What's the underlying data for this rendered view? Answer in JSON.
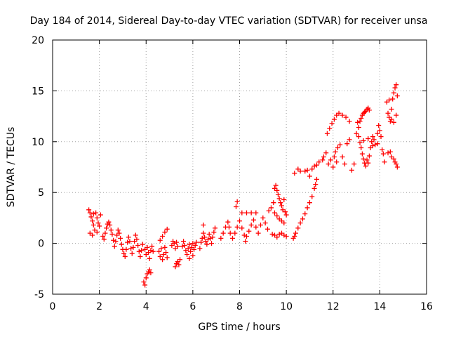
{
  "chart_data": {
    "type": "scatter",
    "title": "Day 184 of 2014, Sidereal Day-to-day VTEC variation (SDTVAR) for receiver unsa",
    "xlabel": "GPS time / hours",
    "ylabel": "SDTVAR / TECUs",
    "xlim": [
      0,
      16
    ],
    "ylim": [
      -5,
      20
    ],
    "xticks": [
      "0",
      "2",
      "4",
      "6",
      "8",
      "10",
      "12",
      "14",
      "16"
    ],
    "yticks": [
      "-5",
      "0",
      "5",
      "10",
      "15",
      "20"
    ],
    "grid": true,
    "marker": "+",
    "series_color": "#ff0000",
    "series": [
      {
        "name": "SDTVAR",
        "points": [
          [
            1.55,
            3.3
          ],
          [
            1.6,
            3.0
          ],
          [
            1.65,
            2.6
          ],
          [
            1.7,
            2.2
          ],
          [
            1.75,
            1.8
          ],
          [
            1.8,
            1.3
          ],
          [
            1.6,
            1.0
          ],
          [
            1.7,
            0.8
          ],
          [
            1.85,
            3.0
          ],
          [
            1.9,
            2.5
          ],
          [
            1.95,
            2.0
          ],
          [
            2.0,
            1.7
          ],
          [
            2.05,
            2.8
          ],
          [
            1.75,
            2.9
          ],
          [
            1.9,
            1.1
          ],
          [
            2.15,
            0.7
          ],
          [
            2.2,
            0.4
          ],
          [
            2.25,
            1.0
          ],
          [
            2.3,
            1.5
          ],
          [
            2.35,
            1.9
          ],
          [
            2.4,
            2.1
          ],
          [
            2.45,
            1.8
          ],
          [
            2.5,
            1.3
          ],
          [
            2.55,
            0.9
          ],
          [
            2.6,
            0.3
          ],
          [
            2.65,
            -0.3
          ],
          [
            2.7,
            0.2
          ],
          [
            2.75,
            0.8
          ],
          [
            2.8,
            1.3
          ],
          [
            2.85,
            1.0
          ],
          [
            2.9,
            0.5
          ],
          [
            2.95,
            -0.1
          ],
          [
            3.0,
            -0.6
          ],
          [
            3.05,
            -1.0
          ],
          [
            3.1,
            -1.3
          ],
          [
            3.15,
            -0.6
          ],
          [
            3.2,
            0.1
          ],
          [
            3.25,
            0.6
          ],
          [
            3.3,
            0.2
          ],
          [
            3.35,
            -0.5
          ],
          [
            3.4,
            -1.0
          ],
          [
            3.45,
            -0.4
          ],
          [
            3.5,
            0.2
          ],
          [
            3.55,
            0.8
          ],
          [
            3.6,
            0.4
          ],
          [
            3.65,
            -0.2
          ],
          [
            3.7,
            -0.8
          ],
          [
            3.75,
            -1.3
          ],
          [
            3.8,
            -0.7
          ],
          [
            3.85,
            -0.1
          ],
          [
            3.9,
            -3.8
          ],
          [
            3.95,
            -4.1
          ],
          [
            4.0,
            -3.4
          ],
          [
            4.05,
            -3.0
          ],
          [
            4.1,
            -2.8
          ],
          [
            4.15,
            -2.6
          ],
          [
            4.2,
            -2.9
          ],
          [
            3.95,
            -0.6
          ],
          [
            4.0,
            -1.1
          ],
          [
            4.05,
            -0.4
          ],
          [
            4.1,
            -0.9
          ],
          [
            4.15,
            -1.5
          ],
          [
            4.2,
            -0.7
          ],
          [
            4.25,
            -0.3
          ],
          [
            4.3,
            -0.8
          ],
          [
            4.55,
            -0.8
          ],
          [
            4.6,
            -1.3
          ],
          [
            4.65,
            -0.5
          ],
          [
            4.7,
            -1.6
          ],
          [
            4.75,
            -1.1
          ],
          [
            4.8,
            -0.4
          ],
          [
            4.85,
            -0.9
          ],
          [
            4.9,
            -1.4
          ],
          [
            4.6,
            0.3
          ],
          [
            4.7,
            0.7
          ],
          [
            4.8,
            1.1
          ],
          [
            4.9,
            1.4
          ],
          [
            5.1,
            -0.2
          ],
          [
            5.15,
            0.2
          ],
          [
            5.2,
            0.0
          ],
          [
            5.25,
            -0.5
          ],
          [
            5.3,
            0.1
          ],
          [
            5.35,
            -0.3
          ],
          [
            5.25,
            -2.3
          ],
          [
            5.3,
            -2.0
          ],
          [
            5.35,
            -1.8
          ],
          [
            5.4,
            -2.1
          ],
          [
            5.45,
            -1.6
          ],
          [
            5.55,
            -0.3
          ],
          [
            5.6,
            0.2
          ],
          [
            5.65,
            -0.2
          ],
          [
            5.7,
            -0.7
          ],
          [
            5.75,
            -1.1
          ],
          [
            5.8,
            -0.5
          ],
          [
            5.85,
            -0.1
          ],
          [
            5.9,
            -0.8
          ],
          [
            5.95,
            -0.4
          ],
          [
            6.0,
            0.0
          ],
          [
            6.05,
            -0.6
          ],
          [
            6.1,
            -0.2
          ],
          [
            6.15,
            0.1
          ],
          [
            5.85,
            -1.5
          ],
          [
            6.0,
            -1.2
          ],
          [
            6.3,
            -0.5
          ],
          [
            6.35,
            0.1
          ],
          [
            6.4,
            0.5
          ],
          [
            6.45,
            1.0
          ],
          [
            6.5,
            0.6
          ],
          [
            6.55,
            0.2
          ],
          [
            6.6,
            -0.1
          ],
          [
            6.65,
            0.4
          ],
          [
            6.7,
            0.9
          ],
          [
            6.75,
            0.5
          ],
          [
            6.8,
            0.0
          ],
          [
            6.85,
            0.6
          ],
          [
            6.9,
            1.1
          ],
          [
            6.95,
            1.5
          ],
          [
            6.45,
            1.8
          ],
          [
            7.2,
            0.5
          ],
          [
            7.3,
            1.0
          ],
          [
            7.4,
            1.6
          ],
          [
            7.5,
            2.1
          ],
          [
            7.55,
            1.6
          ],
          [
            7.6,
            1.0
          ],
          [
            7.7,
            0.5
          ],
          [
            7.8,
            1.0
          ],
          [
            7.9,
            1.6
          ],
          [
            8.0,
            2.2
          ],
          [
            8.1,
            1.5
          ],
          [
            8.2,
            0.8
          ],
          [
            8.25,
            0.2
          ],
          [
            8.3,
            0.7
          ],
          [
            8.4,
            1.2
          ],
          [
            8.5,
            1.8
          ],
          [
            8.6,
            2.3
          ],
          [
            8.7,
            1.6
          ],
          [
            8.8,
            1.0
          ],
          [
            8.9,
            1.8
          ],
          [
            9.0,
            2.5
          ],
          [
            9.1,
            2.0
          ],
          [
            9.2,
            1.4
          ],
          [
            8.1,
            3.0
          ],
          [
            8.3,
            3.0
          ],
          [
            8.5,
            3.0
          ],
          [
            8.7,
            3.0
          ],
          [
            7.85,
            3.6
          ],
          [
            7.9,
            4.1
          ],
          [
            9.25,
            3.2
          ],
          [
            9.35,
            3.5
          ],
          [
            9.45,
            4.0
          ],
          [
            9.5,
            5.4
          ],
          [
            9.55,
            5.7
          ],
          [
            9.6,
            5.2
          ],
          [
            9.65,
            4.8
          ],
          [
            9.7,
            4.4
          ],
          [
            9.75,
            4.0
          ],
          [
            9.8,
            3.7
          ],
          [
            9.85,
            3.3
          ],
          [
            9.9,
            4.3
          ],
          [
            9.95,
            3.1
          ],
          [
            10.0,
            2.8
          ],
          [
            9.5,
            3.0
          ],
          [
            9.6,
            2.7
          ],
          [
            9.7,
            2.4
          ],
          [
            9.8,
            2.2
          ],
          [
            9.9,
            2.0
          ],
          [
            9.4,
            0.9
          ],
          [
            9.5,
            0.8
          ],
          [
            9.6,
            0.6
          ],
          [
            9.7,
            0.9
          ],
          [
            9.8,
            1.0
          ],
          [
            9.9,
            0.8
          ],
          [
            10.0,
            0.7
          ],
          [
            10.3,
            0.5
          ],
          [
            10.35,
            0.7
          ],
          [
            10.4,
            1.0
          ],
          [
            10.5,
            1.5
          ],
          [
            10.6,
            2.0
          ],
          [
            10.7,
            2.4
          ],
          [
            10.8,
            2.9
          ],
          [
            10.9,
            3.5
          ],
          [
            11.0,
            4.0
          ],
          [
            11.1,
            4.6
          ],
          [
            11.2,
            5.4
          ],
          [
            11.25,
            5.8
          ],
          [
            11.3,
            6.3
          ],
          [
            10.35,
            6.9
          ],
          [
            10.5,
            7.3
          ],
          [
            10.6,
            7.1
          ],
          [
            10.8,
            7.1
          ],
          [
            10.9,
            7.2
          ],
          [
            11.0,
            6.6
          ],
          [
            11.1,
            7.3
          ],
          [
            11.2,
            7.6
          ],
          [
            11.3,
            7.7
          ],
          [
            11.4,
            8.0
          ],
          [
            11.55,
            8.2
          ],
          [
            11.6,
            8.5
          ],
          [
            11.7,
            8.9
          ],
          [
            11.8,
            7.8
          ],
          [
            11.9,
            8.2
          ],
          [
            12.0,
            7.5
          ],
          [
            12.05,
            8.5
          ],
          [
            12.1,
            9.0
          ],
          [
            12.15,
            8.0
          ],
          [
            12.2,
            9.4
          ],
          [
            12.3,
            9.7
          ],
          [
            12.4,
            8.5
          ],
          [
            12.5,
            7.8
          ],
          [
            12.6,
            9.8
          ],
          [
            12.7,
            10.2
          ],
          [
            12.8,
            7.2
          ],
          [
            12.9,
            7.8
          ],
          [
            11.75,
            10.8
          ],
          [
            11.85,
            11.3
          ],
          [
            11.95,
            11.8
          ],
          [
            12.05,
            12.2
          ],
          [
            12.15,
            12.6
          ],
          [
            12.25,
            12.8
          ],
          [
            12.4,
            12.6
          ],
          [
            12.55,
            12.4
          ],
          [
            12.7,
            12.0
          ],
          [
            13.0,
            10.8
          ],
          [
            13.05,
            11.9
          ],
          [
            13.1,
            11.4
          ],
          [
            13.15,
            12.0
          ],
          [
            13.2,
            12.3
          ],
          [
            13.25,
            12.6
          ],
          [
            13.3,
            12.8
          ],
          [
            13.35,
            12.9
          ],
          [
            13.4,
            13.0
          ],
          [
            13.45,
            13.2
          ],
          [
            13.5,
            13.3
          ],
          [
            13.55,
            13.1
          ],
          [
            13.1,
            10.5
          ],
          [
            13.15,
            9.9
          ],
          [
            13.2,
            9.4
          ],
          [
            13.25,
            8.8
          ],
          [
            13.3,
            8.3
          ],
          [
            13.35,
            7.9
          ],
          [
            13.4,
            7.6
          ],
          [
            13.45,
            8.2
          ],
          [
            13.5,
            7.9
          ],
          [
            13.55,
            8.6
          ],
          [
            13.6,
            9.4
          ],
          [
            13.65,
            10.0
          ],
          [
            13.7,
            10.5
          ],
          [
            13.75,
            10.2
          ],
          [
            13.8,
            9.7
          ],
          [
            13.9,
            9.8
          ],
          [
            13.3,
            10.1
          ],
          [
            13.5,
            10.3
          ],
          [
            13.7,
            9.6
          ],
          [
            13.9,
            10.8
          ],
          [
            14.0,
            11.1
          ],
          [
            14.05,
            10.5
          ],
          [
            14.1,
            9.2
          ],
          [
            14.15,
            8.8
          ],
          [
            13.95,
            11.6
          ],
          [
            14.3,
            13.9
          ],
          [
            14.35,
            12.8
          ],
          [
            14.4,
            12.4
          ],
          [
            14.45,
            12.0
          ],
          [
            14.5,
            13.2
          ],
          [
            14.55,
            14.2
          ],
          [
            14.6,
            14.8
          ],
          [
            14.65,
            15.3
          ],
          [
            14.7,
            15.6
          ],
          [
            14.75,
            14.5
          ],
          [
            14.4,
            14.1
          ],
          [
            14.5,
            12.2
          ],
          [
            14.6,
            11.9
          ],
          [
            14.7,
            12.6
          ],
          [
            14.2,
            8.0
          ],
          [
            14.35,
            8.9
          ],
          [
            14.45,
            9.0
          ],
          [
            14.5,
            8.5
          ],
          [
            14.6,
            8.3
          ],
          [
            14.65,
            8.0
          ],
          [
            14.7,
            7.8
          ],
          [
            14.75,
            7.5
          ]
        ]
      }
    ]
  }
}
